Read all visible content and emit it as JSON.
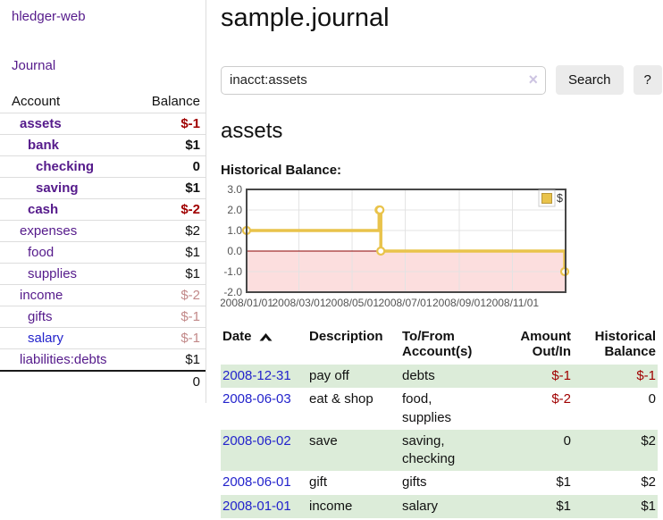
{
  "colors": {
    "purple_link": "#551a8b",
    "blue_link": "#2323cc",
    "neg_strong": "#a00000",
    "neg_soft": "#c28989",
    "row_stripe_green": "#dcecd9",
    "chart_line_gold": "#e9c34b",
    "chart_negative_area": "#fcdede",
    "chart_zero_line": "#8b0000",
    "chart_border": "#474747",
    "chart_grid": "#e3e3e3",
    "chart_tick_text": "#545454"
  },
  "sidebar": {
    "brand": "hledger-web",
    "journal_link": "Journal",
    "accounts": {
      "headers": {
        "account": "Account",
        "balance": "Balance"
      },
      "rows": [
        {
          "name": "assets",
          "depth": 1,
          "bold": true,
          "balance": "$-1"
        },
        {
          "name": "bank",
          "depth": 2,
          "bold": true,
          "balance": "$1"
        },
        {
          "name": "checking",
          "depth": 3,
          "bold": true,
          "balance": "0"
        },
        {
          "name": "saving",
          "depth": 3,
          "bold": true,
          "balance": "$1"
        },
        {
          "name": "cash",
          "depth": 2,
          "bold": true,
          "balance": "$-2"
        },
        {
          "name": "expenses",
          "depth": 1,
          "bold": false,
          "balance": "$2"
        },
        {
          "name": "food",
          "depth": 2,
          "bold": false,
          "balance": "$1"
        },
        {
          "name": "supplies",
          "depth": 2,
          "bold": false,
          "balance": "$1"
        },
        {
          "name": "income",
          "depth": 1,
          "bold": false,
          "balance": "$-2"
        },
        {
          "name": "gifts",
          "depth": 2,
          "bold": false,
          "balance": "$-1"
        },
        {
          "name": "salary",
          "depth": 2,
          "bold": false,
          "blue": true,
          "balance": "$-1"
        },
        {
          "name": "liabilities:debts",
          "depth": 1,
          "bold": false,
          "balance": "$1"
        }
      ],
      "total": "0"
    }
  },
  "main": {
    "title": "sample.journal",
    "search": {
      "value": "inacct:assets",
      "clear_icon": "×",
      "search_button": "Search",
      "help_button": "?"
    },
    "account_heading": "assets",
    "chart_heading": "Historical Balance:",
    "transactions": {
      "headers": [
        {
          "lines": [
            "Date"
          ],
          "align": "left",
          "sort": "asc"
        },
        {
          "lines": [
            "Description"
          ],
          "align": "left"
        },
        {
          "lines": [
            "To/From",
            "Account(s)"
          ],
          "align": "left"
        },
        {
          "lines": [
            "Amount",
            "Out/In"
          ],
          "align": "right"
        },
        {
          "lines": [
            "Historical",
            "Balance"
          ],
          "align": "right"
        }
      ],
      "rows": [
        {
          "date": "2008-12-31",
          "description": "pay off",
          "accounts": [
            "debts"
          ],
          "amount": "$-1",
          "balance": "$-1"
        },
        {
          "date": "2008-06-03",
          "description": "eat & shop",
          "accounts": [
            "food, supplies"
          ],
          "amount": "$-2",
          "balance": "0"
        },
        {
          "date": "2008-06-02",
          "description": "save",
          "accounts": [
            "saving,",
            "checking"
          ],
          "amount": "0",
          "balance": "$2"
        },
        {
          "date": "2008-06-01",
          "description": "gift",
          "accounts": [
            "gifts"
          ],
          "amount": "$1",
          "balance": "$2"
        },
        {
          "date": "2008-01-01",
          "description": "income",
          "accounts": [
            "salary"
          ],
          "amount": "$1",
          "balance": "$1"
        }
      ]
    }
  },
  "chart_data": {
    "type": "line",
    "style": "step",
    "series": [
      {
        "name": "$",
        "points": [
          [
            "2008-01-01",
            1
          ],
          [
            "2008-06-01",
            2
          ],
          [
            "2008-06-02",
            2
          ],
          [
            "2008-06-03",
            0
          ],
          [
            "2008-12-31",
            -1
          ]
        ]
      }
    ],
    "ylim": [
      -2,
      3
    ],
    "yticks": [
      3,
      2,
      1,
      0,
      -1,
      -2
    ],
    "ytick_labels": [
      "3.0",
      "2.0",
      "1.0",
      "0.0",
      "-1.0",
      "-2.0"
    ],
    "xticks": [
      "2008-01-01",
      "2008-03-01",
      "2008-05-01",
      "2008-07-01",
      "2008-09-01",
      "2008-11-01"
    ],
    "xtick_labels": [
      "2008/01/01",
      "2008/03/01",
      "2008/05/01",
      "2008/07/01",
      "2008/09/01",
      "2008/11/01"
    ],
    "x_range": [
      "2008-01-01",
      "2009-01-01"
    ],
    "legend": {
      "label": "$",
      "position": "top-right"
    },
    "grid": true,
    "negative_region_shaded": true
  }
}
